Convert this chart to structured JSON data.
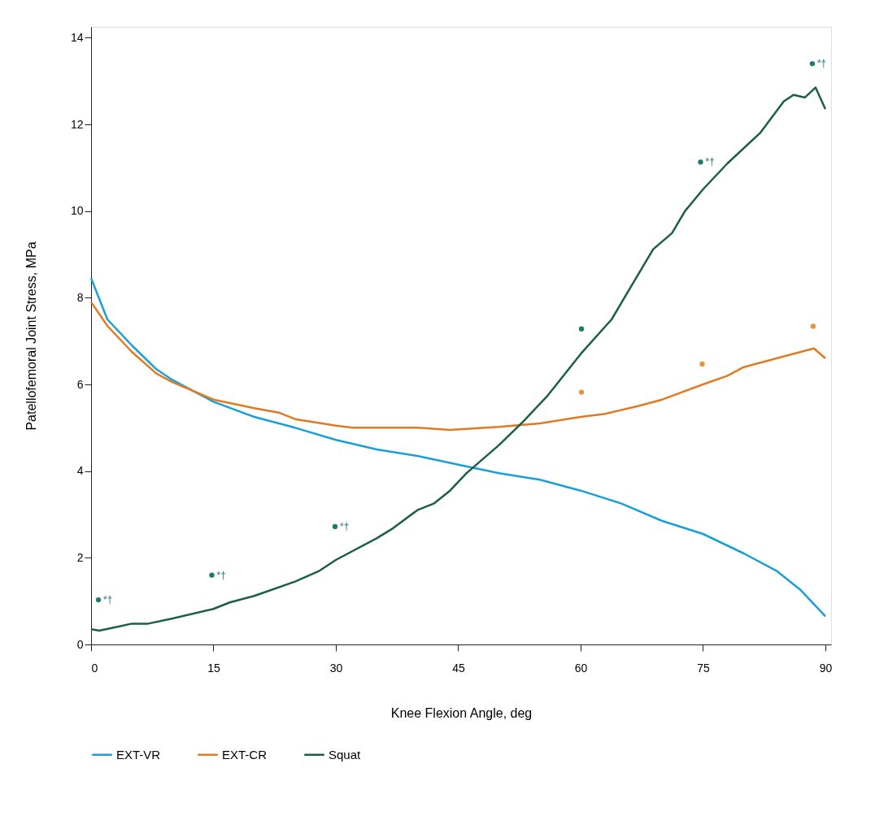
{
  "chart_data": {
    "type": "line",
    "xlabel": "Knee Flexion Angle, deg",
    "ylabel": "Patellofemoral Joint Stress, MPa",
    "xlim": [
      0,
      90.7
    ],
    "xticks": [
      0,
      15,
      30,
      45,
      60,
      75,
      90
    ],
    "ylim": [
      0,
      14.25
    ],
    "yticks": [
      0,
      2,
      4,
      6,
      8,
      10,
      12,
      14
    ],
    "grid": false,
    "legend": "bottom",
    "series": [
      {
        "name": "EXT-VR",
        "color": "#1a9fd8",
        "x": [
          0,
          2,
          5,
          8,
          10,
          15,
          20,
          25,
          30,
          35,
          40,
          45,
          50,
          55,
          60,
          65,
          70,
          75,
          80,
          84,
          87,
          90
        ],
        "values": [
          8.45,
          7.5,
          6.9,
          6.35,
          6.1,
          5.6,
          5.25,
          5.0,
          4.72,
          4.5,
          4.35,
          4.15,
          3.95,
          3.8,
          3.55,
          3.25,
          2.85,
          2.55,
          2.1,
          1.7,
          1.25,
          0.65
        ]
      },
      {
        "name": "EXT-CR",
        "color": "#e07b24",
        "x": [
          0,
          2,
          5,
          8,
          10,
          15,
          20,
          23,
          25,
          30,
          32,
          40,
          44,
          50,
          55,
          60,
          63,
          67,
          70,
          75,
          78,
          80,
          85,
          88.6,
          90
        ],
        "values": [
          7.9,
          7.35,
          6.75,
          6.25,
          6.05,
          5.65,
          5.45,
          5.35,
          5.2,
          5.05,
          5.0,
          5.0,
          4.95,
          5.02,
          5.1,
          5.25,
          5.32,
          5.5,
          5.65,
          6.0,
          6.2,
          6.4,
          6.65,
          6.83,
          6.6
        ]
      },
      {
        "name": "Squat",
        "color": "#1b5e4a",
        "x": [
          0,
          1,
          3,
          5,
          7,
          10,
          15,
          17,
          20,
          25,
          28,
          30,
          35,
          37,
          40,
          42,
          44,
          46,
          50,
          53,
          56,
          60,
          63.8,
          66,
          68.9,
          71.2,
          72.8,
          75,
          78,
          82,
          84.9,
          86.1,
          87.5,
          88.8,
          90
        ],
        "values": [
          0.35,
          0.32,
          0.4,
          0.48,
          0.48,
          0.6,
          0.82,
          0.97,
          1.12,
          1.45,
          1.7,
          1.95,
          2.45,
          2.68,
          3.1,
          3.25,
          3.55,
          3.95,
          4.6,
          5.15,
          5.75,
          6.7,
          7.5,
          8.2,
          9.12,
          9.49,
          10.0,
          10.5,
          11.1,
          11.8,
          12.53,
          12.68,
          12.62,
          12.85,
          12.35
        ]
      },
      {
        "type": "scatter",
        "color": "#1e7a6e",
        "x": [
          0.9,
          14.8,
          29.9,
          60.1,
          74.7,
          88.4
        ],
        "values": [
          1.03,
          1.6,
          2.72,
          7.28,
          11.13,
          13.4
        ]
      },
      {
        "type": "scatter",
        "color": "#e8923a",
        "x": [
          60.1,
          74.9,
          88.5
        ],
        "values": [
          5.82,
          6.47,
          7.34
        ]
      }
    ],
    "annotations": [
      {
        "text": "*†",
        "x": 0.9,
        "y": 1.03
      },
      {
        "text": "*†",
        "x": 14.8,
        "y": 1.6
      },
      {
        "text": "*†",
        "x": 29.9,
        "y": 2.72
      },
      {
        "text": "*†",
        "x": 74.7,
        "y": 11.13
      },
      {
        "text": "*†",
        "x": 88.4,
        "y": 13.4
      }
    ]
  }
}
